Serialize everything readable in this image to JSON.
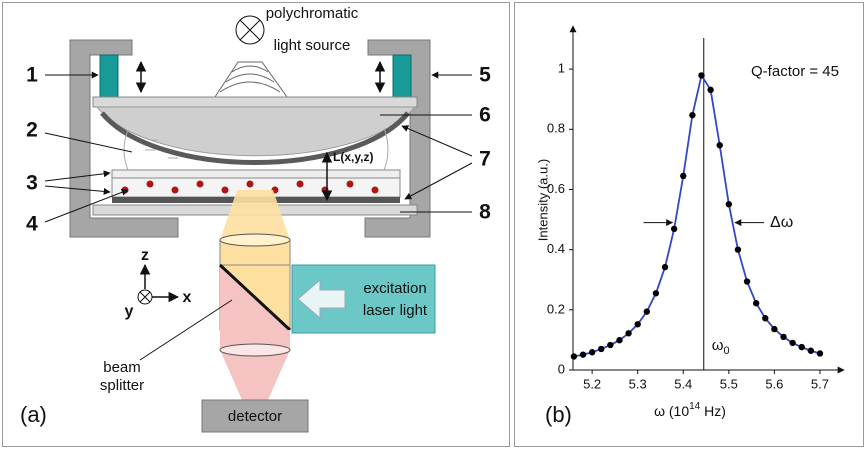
{
  "diagram": {
    "panel_label": "(a)",
    "light_source": [
      "polychromatic",
      "light source"
    ],
    "component_numbers": [
      "1",
      "2",
      "3",
      "4",
      "5",
      "6",
      "7",
      "8"
    ],
    "gap_label": "L(x,y,z)",
    "axes": {
      "z": "z",
      "y": "y",
      "x": "x"
    },
    "excitation": [
      "excitation",
      "laser light"
    ],
    "beam_splitter": [
      "beam",
      "splitter"
    ],
    "detector": "detector"
  },
  "chart_data": {
    "type": "scatter",
    "panel_label": "(b)",
    "y_label": "Intensity (a.u.)",
    "x_label": {
      "text": "ω (10",
      "superscript": "14",
      "suffix": " Hz)"
    },
    "annotation": "Q-factor = 45",
    "fwhm_label": "Δω",
    "peak_label": {
      "text": "ω",
      "subscript": "0"
    },
    "peak_line": 5.445,
    "fwhm_markers": [
      5.383,
      5.507
    ],
    "half_max_level": 0.49,
    "x": [
      5.16,
      5.18,
      5.2,
      5.22,
      5.24,
      5.26,
      5.28,
      5.3,
      5.32,
      5.34,
      5.36,
      5.38,
      5.4,
      5.42,
      5.44,
      5.46,
      5.48,
      5.5,
      5.52,
      5.54,
      5.56,
      5.58,
      5.6,
      5.62,
      5.64,
      5.66,
      5.68,
      5.7
    ],
    "series": [
      {
        "color": "#3347c8",
        "style": "line",
        "values": [
          0.045,
          0.051,
          0.059,
          0.07,
          0.083,
          0.099,
          0.122,
          0.152,
          0.194,
          0.255,
          0.342,
          0.469,
          0.645,
          0.847,
          0.979,
          0.931,
          0.747,
          0.551,
          0.4,
          0.294,
          0.222,
          0.172,
          0.136,
          0.11,
          0.09,
          0.076,
          0.064,
          0.055
        ]
      },
      {
        "color": "#000000",
        "style": "markers",
        "values": [
          0.045,
          0.051,
          0.059,
          0.07,
          0.083,
          0.099,
          0.122,
          0.152,
          0.194,
          0.255,
          0.342,
          0.469,
          0.645,
          0.847,
          0.979,
          0.931,
          0.747,
          0.551,
          0.4,
          0.294,
          0.222,
          0.172,
          0.136,
          0.11,
          0.09,
          0.076,
          0.064,
          0.055
        ]
      }
    ],
    "xlim": [
      5.158,
      5.744
    ],
    "xticks": [
      5.2,
      5.3,
      5.4,
      5.5,
      5.6,
      5.7
    ],
    "ylim": [
      0,
      1.13
    ],
    "yticks": [
      0,
      0.2,
      0.4,
      0.6,
      0.8,
      1
    ]
  }
}
